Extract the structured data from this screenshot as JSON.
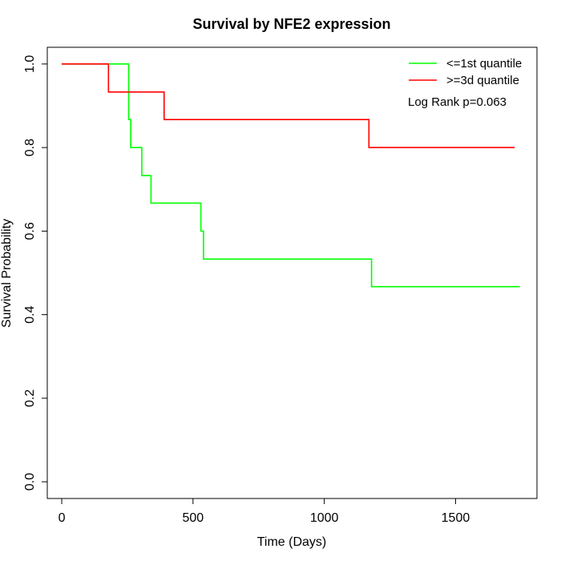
{
  "chart_data": {
    "type": "line",
    "title": "Survival by NFE2 expression",
    "xlabel": "Time (Days)",
    "ylabel": "Survival Probability",
    "xlim": [
      -55,
      1810
    ],
    "ylim": [
      -0.04,
      1.04
    ],
    "x_ticks": [
      0,
      500,
      1000,
      1500
    ],
    "x_tick_labels": [
      "0",
      "500",
      "1000",
      "1500"
    ],
    "y_ticks": [
      0.0,
      0.2,
      0.4,
      0.6,
      0.8,
      1.0
    ],
    "y_tick_labels": [
      "0.0",
      "0.2",
      "0.4",
      "0.6",
      "0.8",
      "1.0"
    ],
    "grid": false,
    "legend_position": "top-right",
    "annotation": "Log Rank p=0.063",
    "series": [
      {
        "name": "<=1st quantile",
        "color": "#00ff00",
        "step": true,
        "x": [
          0,
          255,
          263,
          270,
          305,
          340,
          530,
          540,
          1180,
          1745
        ],
        "y": [
          1.0,
          0.867,
          0.8,
          0.8,
          0.733,
          0.667,
          0.6,
          0.533,
          0.467,
          0.467
        ]
      },
      {
        "name": ">=3d quantile",
        "color": "#ff0000",
        "step": true,
        "x": [
          0,
          178,
          390,
          1170,
          1725
        ],
        "y": [
          1.0,
          0.933,
          0.867,
          0.8,
          0.8
        ]
      }
    ]
  }
}
